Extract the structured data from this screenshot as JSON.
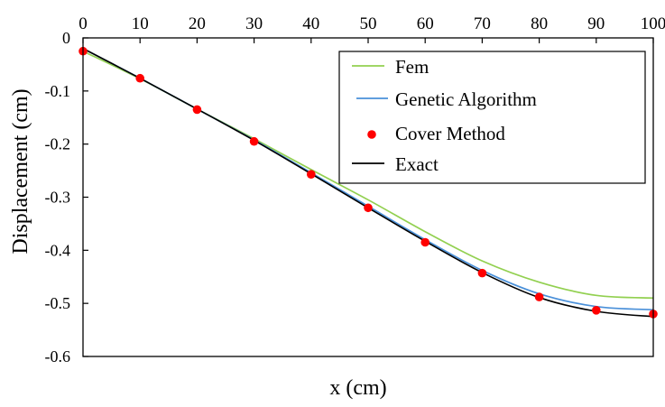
{
  "chart_data": {
    "type": "line",
    "xlabel": "x (cm)",
    "ylabel": "Displacement  (cm)",
    "xlim": [
      0,
      100
    ],
    "ylim": [
      -0.6,
      0
    ],
    "x_ticks": [
      0,
      10,
      20,
      30,
      40,
      50,
      60,
      70,
      80,
      90,
      100
    ],
    "y_ticks": [
      0,
      -0.1,
      -0.2,
      -0.3,
      -0.4,
      -0.5,
      -0.6
    ],
    "x_tick_labels": [
      "0",
      "10",
      "20",
      "30",
      "40",
      "50",
      "60",
      "70",
      "80",
      "90",
      "100"
    ],
    "y_tick_labels": [
      "0",
      "-0.1",
      "-0.2",
      "-0.3",
      "-0.4",
      "-0.5",
      "-0.6"
    ],
    "x_axis_position": "top",
    "grid": false,
    "legend_position": "top-right",
    "series": [
      {
        "name": "Fem",
        "style": "line",
        "color": "#92d050",
        "x": [
          0,
          10,
          20,
          30,
          40,
          50,
          60,
          70,
          80,
          90,
          100
        ],
        "y": [
          -0.025,
          -0.077,
          -0.134,
          -0.19,
          -0.248,
          -0.305,
          -0.365,
          -0.42,
          -0.46,
          -0.485,
          -0.49
        ]
      },
      {
        "name": "Genetic Algorithm",
        "style": "line",
        "color": "#4a90d9",
        "x": [
          0,
          10,
          20,
          30,
          40,
          50,
          60,
          70,
          80,
          90,
          100
        ],
        "y": [
          -0.02,
          -0.076,
          -0.134,
          -0.192,
          -0.254,
          -0.317,
          -0.38,
          -0.438,
          -0.482,
          -0.506,
          -0.512
        ]
      },
      {
        "name": "Cover Method",
        "style": "markers",
        "color": "#ff0000",
        "x": [
          0,
          10,
          20,
          30,
          40,
          50,
          60,
          70,
          80,
          90,
          100
        ],
        "y": [
          -0.025,
          -0.076,
          -0.135,
          -0.195,
          -0.257,
          -0.32,
          -0.385,
          -0.443,
          -0.488,
          -0.513,
          -0.52
        ]
      },
      {
        "name": "Exact",
        "style": "line",
        "color": "#000000",
        "x": [
          0,
          10,
          20,
          30,
          40,
          50,
          60,
          70,
          80,
          90,
          100
        ],
        "y": [
          -0.02,
          -0.076,
          -0.134,
          -0.193,
          -0.256,
          -0.32,
          -0.383,
          -0.442,
          -0.489,
          -0.515,
          -0.525
        ]
      }
    ]
  }
}
